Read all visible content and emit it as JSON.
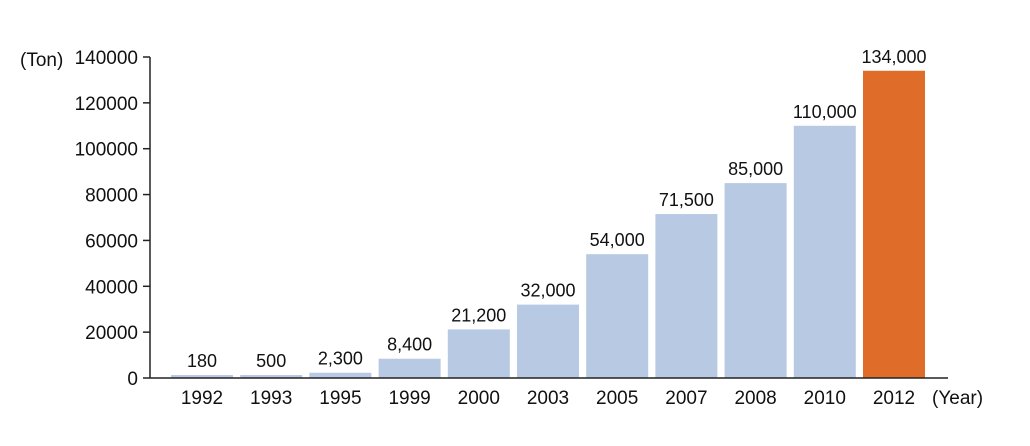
{
  "chart_data": {
    "type": "bar",
    "y_unit_label": "(Ton)",
    "x_unit_label": "(Year)",
    "categories": [
      "1992",
      "1993",
      "1995",
      "1999",
      "2000",
      "2003",
      "2005",
      "2007",
      "2008",
      "2010",
      "2012"
    ],
    "values": [
      180,
      500,
      2300,
      8400,
      21200,
      32000,
      54000,
      71500,
      85000,
      110000,
      134000
    ],
    "data_labels": [
      "180",
      "500",
      "2,300",
      "8,400",
      "21,200",
      "32,000",
      "54,000",
      "71,500",
      "85,000",
      "110,000",
      "134,000"
    ],
    "ylim": [
      0,
      140000
    ],
    "yticks": [
      0,
      20000,
      40000,
      60000,
      80000,
      100000,
      120000,
      140000
    ],
    "ytick_labels": [
      "0",
      "20000",
      "40000",
      "60000",
      "80000",
      "100000",
      "120000",
      "140000"
    ],
    "grid": false,
    "colors": {
      "bar": "#b8c9e3",
      "highlight": "#df6c28",
      "highlight_category": "2012"
    }
  }
}
